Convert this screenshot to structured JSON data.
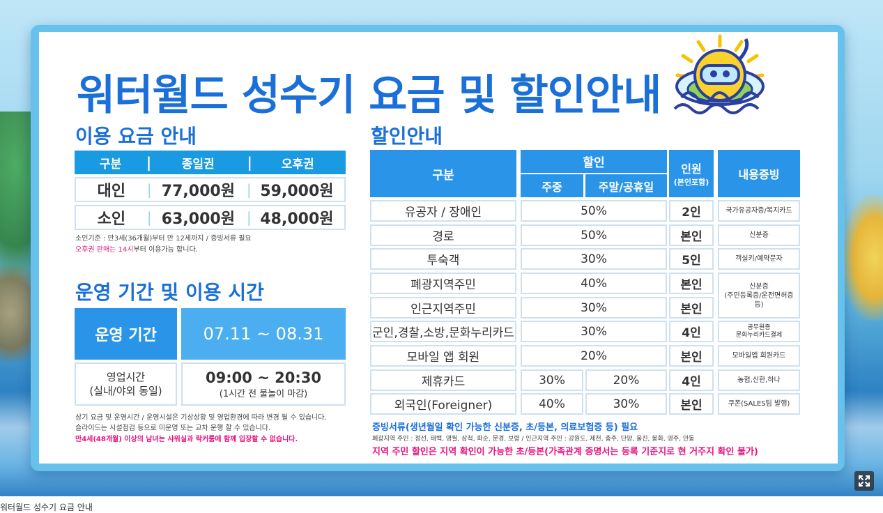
{
  "title": "워터월드 성수기 요금 및 할인안내",
  "price_section": {
    "title": "이용 요금 안내",
    "headers": [
      "구분",
      "종일권",
      "오후권"
    ],
    "rows": [
      {
        "label": "대인",
        "full_day": "77,000원",
        "afternoon": "59,000원"
      },
      {
        "label": "소인",
        "full_day": "63,000원",
        "afternoon": "48,000원"
      }
    ],
    "note1": "소인기준 : 만3세(36개월)부터 만 12세까지 / 증빙서류 필요",
    "note2_pink": "오후권 판매는 14시",
    "note2_rest": "부터 이용가능 합니다."
  },
  "operation_section": {
    "title": "운영 기간 및 이용 시간",
    "period_label": "운영 기간",
    "period_value": "07.11 ~ 08.31",
    "hours_label_line1": "영업시간",
    "hours_label_line2": "(실내/야외 동일)",
    "hours_value": "09:00 ~ 20:30",
    "hours_note": "(1시간 전 물놀이 마감)",
    "note1": "상기 요금 및 운영시간 / 운영시설은 기상상황 및 영업환경에 따라 변경 될 수 있습니다.",
    "note2": "슬라이드는 시설점검 등으로 미운영 또는 교차 운행 할 수 있습니다.",
    "note3": "만4세(48개월) 이상의 남녀는 샤워실과 락커룸에 함께 입장할 수 없습니다."
  },
  "discount_section": {
    "title": "할인안내",
    "headers": {
      "category": "구분",
      "discount": "할인",
      "weekday": "주중",
      "weekend": "주말/공휴일",
      "people": "인원",
      "people_sub": "(본인포함)",
      "proof": "내용증빙"
    },
    "rows": [
      {
        "category": "유공자 / 장애인",
        "discount": "50%",
        "people": "2인",
        "proof": "국가유공자증/복지카드"
      },
      {
        "category": "경로",
        "discount": "50%",
        "people": "본인",
        "proof": "신분증"
      },
      {
        "category": "투숙객",
        "discount": "30%",
        "people": "5인",
        "proof": "객실키/예약문자"
      },
      {
        "category": "폐광지역주민",
        "discount": "40%",
        "people": "본인"
      },
      {
        "category": "인근지역주민",
        "discount": "30%",
        "people": "본인"
      },
      {
        "category": "군인,경찰,소방,문화누리카드",
        "discount": "30%",
        "people": "4인",
        "proof_line1": "공무원증",
        "proof_line2": "문화누리카드결제"
      },
      {
        "category": "모바일 앱 회원",
        "discount": "20%",
        "people": "본인",
        "proof": "모바일앱 회원카드"
      },
      {
        "category": "제휴카드",
        "weekday": "30%",
        "weekend": "20%",
        "people": "4인",
        "proof": "농협,신한,하나"
      },
      {
        "category": "외국인(Foreigner)",
        "weekday": "40%",
        "weekend": "30%",
        "people": "본인",
        "proof": "쿠폰(SALES팀 발행)"
      }
    ],
    "merged_proof_line1": "신분증",
    "merged_proof_line2": "(주민등록증/운전면허증 등)",
    "note1": "증빙서류(생년월일 확인 가능한 신분증, 초/등본, 의료보험증 등) 필요",
    "note2": "폐광지역 주민 : 정선, 태백, 영월, 삼척, 화순, 문경, 보령 / 인근지역 주민 : 강원도, 제천, 충주, 단양, 울진, 봉화, 영주, 안동",
    "note3": "지역 주민 할인은 지역 확인이 가능한 초/등본(가족관계 증명서는 등록 기준지로 현 거주지 확인 불가)"
  },
  "expand_icon": "expand-icon",
  "caption": "워터월드 성수기 요금 안내"
}
